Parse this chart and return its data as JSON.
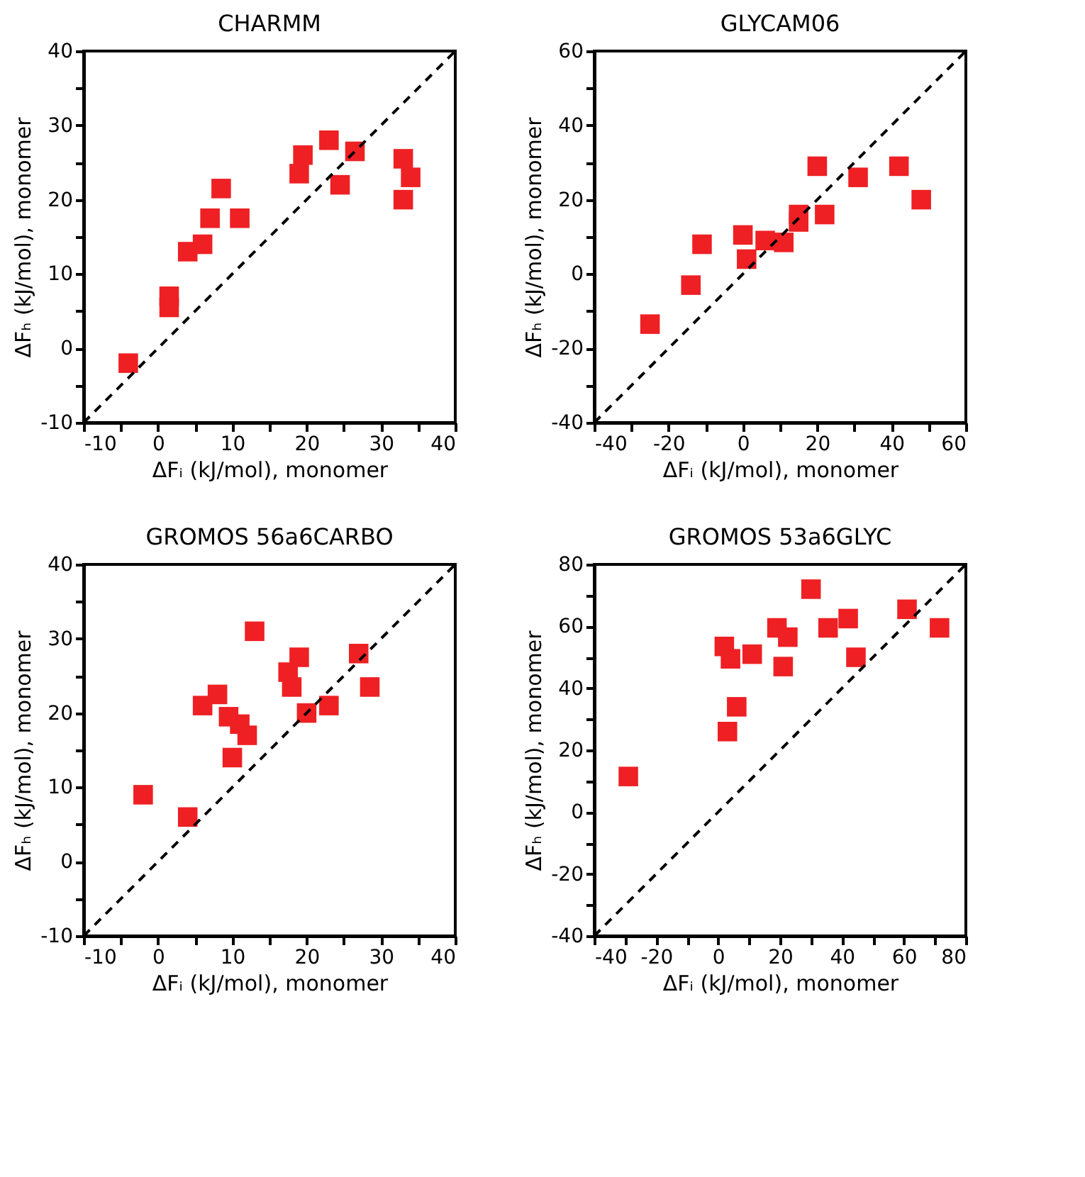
{
  "chart_data": [
    {
      "type": "scatter",
      "title": "CHARMM",
      "xlabel": "ΔFᵢ (kJ/mol), monomer",
      "ylabel": "ΔFₕ (kJ/mol), monomer",
      "grid": false,
      "xlim": [
        -10,
        40
      ],
      "ylim": [
        -10,
        40
      ],
      "xticks": [
        -10,
        {
          "value": -5,
          "label": null
        },
        0,
        {
          "value": 5,
          "label": null
        },
        10,
        {
          "value": 15,
          "label": null
        },
        20,
        {
          "value": 25,
          "label": null
        },
        30,
        {
          "value": 35,
          "label": null
        },
        40
      ],
      "yticks": [
        -10,
        {
          "value": -5,
          "label": null
        },
        0,
        {
          "value": 5,
          "label": null
        },
        10,
        {
          "value": 15,
          "label": null
        },
        20,
        {
          "value": 25,
          "label": null
        },
        30,
        {
          "value": 35,
          "label": null
        },
        40
      ],
      "series": [
        {
          "type": "scatter",
          "marker": "square",
          "color": "#ee2024",
          "x": [
            -4,
            1.5,
            1.5,
            4,
            6,
            7,
            8.5,
            11,
            19,
            19.5,
            23,
            24.5,
            26.5,
            33,
            33,
            34
          ],
          "values": [
            -2,
            7,
            5.5,
            13,
            14,
            17.5,
            21.5,
            17.5,
            23.5,
            26,
            28,
            22,
            26.5,
            20,
            25.5,
            23
          ]
        },
        {
          "type": "line",
          "color": "#000000",
          "marker": "none",
          "line_style": "dashed",
          "x": [
            -10,
            40
          ],
          "values": [
            -10,
            40
          ]
        }
      ]
    },
    {
      "type": "scatter",
      "title": "GLYCAM06",
      "xlabel": "ΔFᵢ (kJ/mol), monomer",
      "ylabel": "ΔFₕ (kJ/mol), monomer",
      "grid": false,
      "xlim": [
        -40,
        60
      ],
      "ylim": [
        -40,
        60
      ],
      "xticks": [
        -40,
        {
          "value": -30,
          "label": null
        },
        -20,
        {
          "value": -10,
          "label": null
        },
        0,
        {
          "value": 10,
          "label": null
        },
        20,
        {
          "value": 30,
          "label": null
        },
        40,
        {
          "value": 50,
          "label": null
        },
        60
      ],
      "yticks": [
        -40,
        {
          "value": -30,
          "label": null
        },
        -20,
        {
          "value": -10,
          "label": null
        },
        0,
        {
          "value": 10,
          "label": null
        },
        20,
        {
          "value": 30,
          "label": null
        },
        40,
        {
          "value": 50,
          "label": null
        },
        60
      ],
      "series": [
        {
          "type": "scatter",
          "marker": "square",
          "color": "#ee2024",
          "x": [
            -25,
            -14,
            -11,
            0,
            1,
            6,
            11,
            15,
            15,
            20,
            22,
            31,
            42,
            48
          ],
          "values": [
            -13.5,
            -3,
            8,
            10.5,
            4,
            9,
            8.5,
            14,
            16,
            29,
            16,
            26,
            29,
            20
          ]
        },
        {
          "type": "line",
          "color": "#000000",
          "marker": "none",
          "line_style": "dashed",
          "x": [
            -40,
            60
          ],
          "values": [
            -40,
            60
          ]
        }
      ]
    },
    {
      "type": "scatter",
      "title": "GROMOS 56a6CARBO",
      "xlabel": "ΔFᵢ (kJ/mol), monomer",
      "ylabel": "ΔFₕ (kJ/mol), monomer",
      "grid": false,
      "xlim": [
        -10,
        40
      ],
      "ylim": [
        -10,
        40
      ],
      "xticks": [
        -10,
        {
          "value": -5,
          "label": null
        },
        0,
        {
          "value": 5,
          "label": null
        },
        10,
        {
          "value": 15,
          "label": null
        },
        20,
        {
          "value": 25,
          "label": null
        },
        30,
        {
          "value": 35,
          "label": null
        },
        40
      ],
      "yticks": [
        -10,
        {
          "value": -5,
          "label": null
        },
        0,
        {
          "value": 5,
          "label": null
        },
        10,
        {
          "value": 15,
          "label": null
        },
        20,
        {
          "value": 25,
          "label": null
        },
        30,
        {
          "value": 35,
          "label": null
        },
        40
      ],
      "series": [
        {
          "type": "scatter",
          "marker": "square",
          "color": "#ee2024",
          "x": [
            -2,
            4,
            6,
            8,
            9.5,
            11,
            12,
            10,
            13,
            17.5,
            18,
            19,
            20,
            23,
            27,
            28.5
          ],
          "values": [
            9,
            6,
            21,
            22.5,
            19.5,
            18.5,
            17,
            14,
            31,
            25.5,
            23.5,
            27.5,
            20,
            21,
            28,
            23.5
          ]
        },
        {
          "type": "line",
          "color": "#000000",
          "marker": "none",
          "line_style": "dashed",
          "x": [
            -10,
            40
          ],
          "values": [
            -10,
            40
          ]
        }
      ]
    },
    {
      "type": "scatter",
      "title": "GROMOS 53a6GLYC",
      "xlabel": "ΔFᵢ (kJ/mol), monomer",
      "ylabel": "ΔFₕ (kJ/mol), monomer",
      "grid": false,
      "xlim": [
        -40,
        80
      ],
      "ylim": [
        -40,
        80
      ],
      "xticks": [
        -40,
        {
          "value": -30,
          "label": null
        },
        -20,
        {
          "value": -10,
          "label": null
        },
        0,
        {
          "value": 10,
          "label": null
        },
        20,
        {
          "value": 30,
          "label": null
        },
        40,
        {
          "value": 50,
          "label": null
        },
        60,
        {
          "value": 70,
          "label": null
        },
        80
      ],
      "yticks": [
        -40,
        {
          "value": -30,
          "label": null
        },
        -20,
        {
          "value": -10,
          "label": null
        },
        0,
        {
          "value": 10,
          "label": null
        },
        20,
        {
          "value": 30,
          "label": null
        },
        40,
        {
          "value": 50,
          "label": null
        },
        60,
        {
          "value": 70,
          "label": null
        },
        80
      ],
      "series": [
        {
          "type": "scatter",
          "marker": "square",
          "color": "#ee2024",
          "x": [
            -29,
            2,
            4,
            11,
            6,
            3,
            19,
            22.5,
            21,
            30,
            35.5,
            42,
            44.5,
            61,
            71.5
          ],
          "values": [
            11.5,
            53.5,
            49.5,
            51,
            34,
            26,
            59.5,
            56.5,
            47,
            72,
            59.5,
            62.5,
            50,
            65.5,
            59.5
          ]
        },
        {
          "type": "line",
          "color": "#000000",
          "marker": "none",
          "line_style": "dashed",
          "x": [
            -40,
            80
          ],
          "values": [
            -40,
            80
          ]
        }
      ]
    }
  ]
}
